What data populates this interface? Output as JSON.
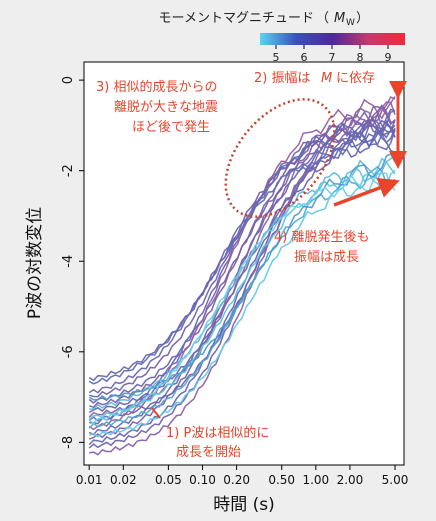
{
  "chart_data": {
    "type": "line",
    "xlabel": "時間 (s)",
    "ylabel": "P波の対数変位",
    "x_scale": "log",
    "xlim": [
      0.009,
      6.0
    ],
    "ylim": [
      -8.5,
      0.4
    ],
    "x_ticks": [
      0.01,
      0.02,
      0.05,
      0.1,
      0.2,
      0.5,
      1.0,
      2.0,
      5.0
    ],
    "x_tick_labels": [
      "0.01",
      "0.02",
      "0.05",
      "0.10",
      "0.20",
      "0.50",
      "1.00",
      "2.00",
      "5.00"
    ],
    "y_ticks": [
      0,
      -2,
      -4,
      -6,
      -8
    ],
    "y_tick_labels": [
      "0",
      "-2",
      "-4",
      "-6",
      "-8"
    ],
    "colorbar": {
      "title": "モーメントマグニチュード",
      "symbol": "M",
      "subscript": "W",
      "ticks": [
        "5",
        "6",
        "7",
        "8",
        "9"
      ],
      "colors": [
        "#5bd3ee",
        "#3a52b8",
        "#4b2a9a",
        "#c43a6c",
        "#ee2a3a"
      ]
    },
    "series": [
      {
        "start": -6.9,
        "end": -1.0,
        "color": "#6a64b0"
      },
      {
        "start": -7.0,
        "end": -0.85,
        "color": "#7460ac"
      },
      {
        "start": -7.1,
        "end": -1.15,
        "color": "#6a64b0"
      },
      {
        "start": -7.2,
        "end": -0.7,
        "color": "#7e5ea6"
      },
      {
        "start": -7.3,
        "end": -1.3,
        "color": "#6466b2"
      },
      {
        "start": -7.4,
        "end": -0.6,
        "color": "#8d5fa0"
      },
      {
        "start": -7.5,
        "end": -1.05,
        "color": "#6a64b0"
      },
      {
        "start": -7.6,
        "end": -0.95,
        "color": "#5f6ab6"
      },
      {
        "start": -7.7,
        "end": -0.55,
        "color": "#9660a0"
      },
      {
        "start": -7.8,
        "end": -1.2,
        "color": "#6568b4"
      },
      {
        "start": -7.9,
        "end": -0.75,
        "color": "#7a5fa8"
      },
      {
        "start": -8.0,
        "end": -1.1,
        "color": "#6466b2"
      },
      {
        "start": -8.1,
        "end": -0.9,
        "color": "#6f62ae"
      },
      {
        "start": -8.25,
        "end": -0.65,
        "color": "#8a60a4"
      },
      {
        "start": -6.7,
        "end": -1.35,
        "color": "#5f6ab6"
      },
      {
        "start": -6.6,
        "end": -1.0,
        "color": "#6a64b0"
      },
      {
        "start": -7.25,
        "end": -1.9,
        "color": "#5fb8da"
      },
      {
        "start": -7.45,
        "end": -1.95,
        "color": "#58c4e4"
      },
      {
        "start": -7.65,
        "end": -2.05,
        "color": "#4fa8d4"
      },
      {
        "start": -7.85,
        "end": -2.15,
        "color": "#62c9e8"
      },
      {
        "start": -7.05,
        "end": -1.85,
        "color": "#4c9ccc"
      },
      {
        "start": -7.55,
        "end": -2.2,
        "color": "#6dd0ec"
      }
    ],
    "annotations": [
      {
        "id": "a1",
        "lines": [
          "1) P波は相似的に",
          "成長を開始"
        ]
      },
      {
        "id": "a2",
        "lines": [
          "2) 振幅は",
          "M",
          "に依存"
        ]
      },
      {
        "id": "a3",
        "lines": [
          "3) 相似的成長からの",
          "離脱が大きな地震",
          "ほど後で発生"
        ]
      },
      {
        "id": "a4",
        "lines": [
          "4) 離脱発生後も",
          "振幅は成長"
        ]
      }
    ],
    "annotation_color": "#e8452c",
    "grid": false
  }
}
